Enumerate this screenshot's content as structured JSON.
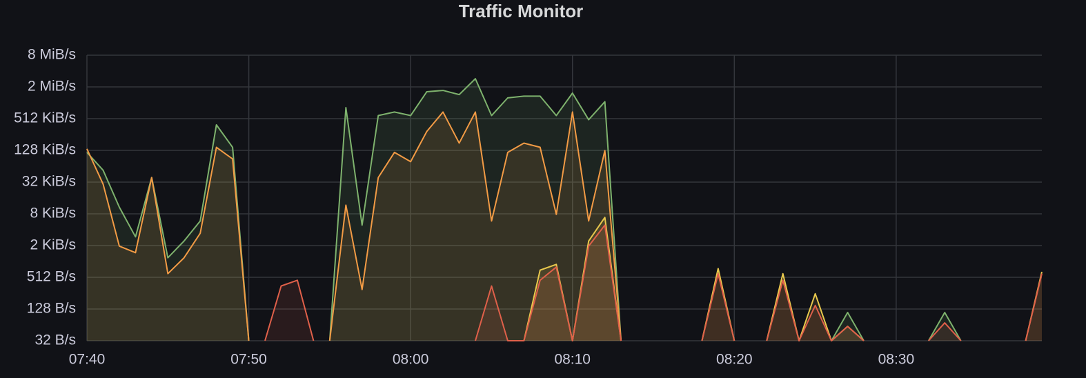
{
  "chart_data": {
    "type": "line",
    "title": "Traffic Monitor",
    "log_scale": true,
    "grid": true,
    "fill_area": true,
    "x": [
      "07:40",
      "07:41",
      "07:42",
      "07:43",
      "07:44",
      "07:45",
      "07:46",
      "07:47",
      "07:48",
      "07:49",
      "07:50",
      "07:51",
      "07:52",
      "07:53",
      "07:54",
      "07:55",
      "07:56",
      "07:57",
      "07:58",
      "07:59",
      "08:00",
      "08:01",
      "08:02",
      "08:03",
      "08:04",
      "08:05",
      "08:06",
      "08:07",
      "08:08",
      "08:09",
      "08:10",
      "08:11",
      "08:12",
      "08:13",
      "08:14",
      "08:15",
      "08:16",
      "08:17",
      "08:18",
      "08:19",
      "08:20",
      "08:21",
      "08:22",
      "08:23",
      "08:24",
      "08:25",
      "08:26",
      "08:27",
      "08:28",
      "08:29",
      "08:30",
      "08:31",
      "08:32",
      "08:33",
      "08:34",
      "08:35",
      "08:36",
      "08:37",
      "08:38",
      "08:39"
    ],
    "xlim": [
      "07:40",
      "08:39"
    ],
    "xticks": [
      "07:40",
      "07:50",
      "08:00",
      "08:10",
      "08:20",
      "08:30"
    ],
    "ylim": [
      32,
      8388608
    ],
    "yticks": [
      {
        "value": 32,
        "label": "32 B/s"
      },
      {
        "value": 128,
        "label": "128 B/s"
      },
      {
        "value": 512,
        "label": "512 B/s"
      },
      {
        "value": 2048,
        "label": "2 KiB/s"
      },
      {
        "value": 8192,
        "label": "8 KiB/s"
      },
      {
        "value": 32768,
        "label": "32 KiB/s"
      },
      {
        "value": 131072,
        "label": "128 KiB/s"
      },
      {
        "value": 524288,
        "label": "512 KiB/s"
      },
      {
        "value": 2097152,
        "label": "2 MiB/s"
      },
      {
        "value": 8388608,
        "label": "8 MiB/s"
      }
    ],
    "series": [
      {
        "color": "#7eb26d",
        "values": [
          120000,
          55000,
          11000,
          3000,
          40000,
          1200,
          2500,
          6000,
          400000,
          150000,
          32,
          null,
          null,
          null,
          null,
          32,
          850000,
          5000,
          600000,
          700000,
          600000,
          1700000,
          1800000,
          1500000,
          3000000,
          600000,
          1300000,
          1400000,
          1400000,
          600000,
          1600000,
          500000,
          1100000,
          32,
          null,
          null,
          null,
          null,
          null,
          null,
          null,
          null,
          null,
          null,
          null,
          null,
          32,
          110,
          32,
          null,
          null,
          null,
          32,
          110,
          32,
          null,
          null,
          null,
          null,
          null
        ]
      },
      {
        "color": "#f29b45",
        "values": [
          140000,
          30000,
          2000,
          1500,
          40000,
          600,
          1200,
          3500,
          150000,
          90000,
          32,
          null,
          null,
          null,
          null,
          32,
          12000,
          300,
          40000,
          120000,
          80000,
          300000,
          700000,
          180000,
          700000,
          6000,
          120000,
          180000,
          150000,
          8000,
          700000,
          6000,
          130000,
          32,
          null,
          null,
          null,
          null,
          null,
          null,
          null,
          null,
          null,
          null,
          null,
          null,
          null,
          null,
          null,
          null,
          null,
          null,
          null,
          null,
          null,
          null,
          null,
          null,
          null,
          null
        ]
      },
      {
        "color": "#e8c84d",
        "values": [
          null,
          null,
          null,
          null,
          null,
          null,
          null,
          null,
          null,
          null,
          null,
          null,
          null,
          null,
          null,
          null,
          null,
          null,
          null,
          null,
          null,
          null,
          null,
          null,
          null,
          null,
          null,
          32,
          700,
          900,
          32,
          2500,
          7000,
          32,
          null,
          null,
          null,
          null,
          32,
          750,
          32,
          null,
          32,
          600,
          32,
          250,
          32,
          60,
          32,
          null,
          null,
          null,
          null,
          null,
          null,
          null,
          null,
          null,
          32,
          650
        ]
      },
      {
        "color": "#e0604a",
        "values": [
          null,
          null,
          null,
          null,
          null,
          null,
          null,
          null,
          null,
          null,
          null,
          32,
          350,
          450,
          32,
          null,
          null,
          null,
          null,
          null,
          null,
          null,
          null,
          null,
          32,
          350,
          32,
          32,
          450,
          800,
          32,
          2000,
          5000,
          32,
          null,
          null,
          null,
          null,
          32,
          600,
          32,
          null,
          32,
          450,
          32,
          150,
          32,
          60,
          32,
          null,
          null,
          null,
          32,
          70,
          32,
          null,
          null,
          null,
          32,
          600
        ]
      }
    ]
  }
}
